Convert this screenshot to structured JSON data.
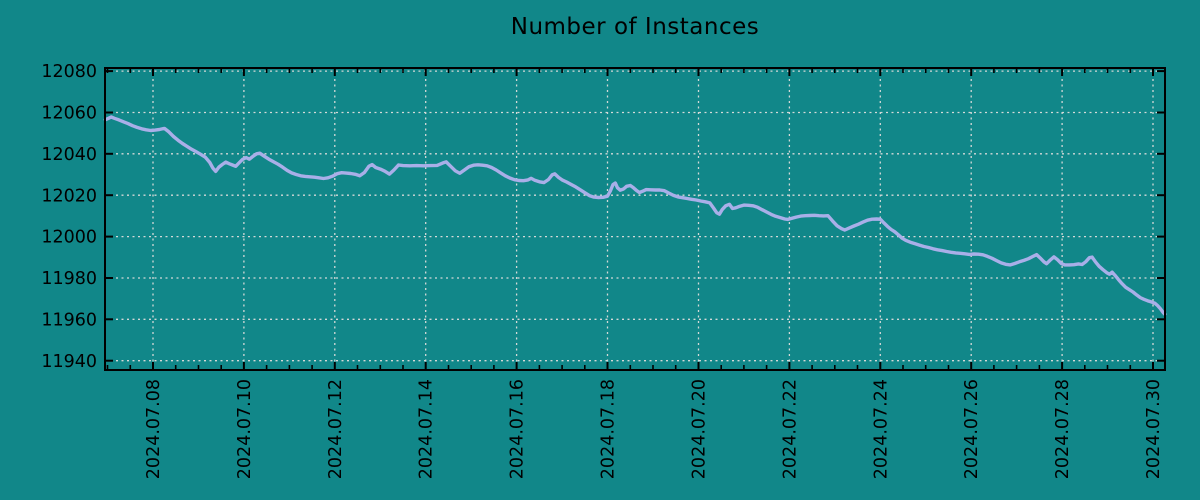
{
  "colors": {
    "background": "#118789",
    "line": "#a9afe8",
    "grid": "#d4d9d8",
    "frame": "#000000",
    "text": "#000000"
  },
  "chart_data": {
    "type": "line",
    "title": "Number of Instances",
    "xlabel": "",
    "ylabel": "",
    "legend": null,
    "grid": "dashed",
    "x_unit": "day of 2024.07 (fractional)",
    "xlim": [
      6.944,
      30.264
    ],
    "ylim": [
      11935.5,
      12081.5
    ],
    "x_ticks": [
      {
        "v": 8,
        "label": "2024.07.08"
      },
      {
        "v": 10,
        "label": "2024.07.10"
      },
      {
        "v": 12,
        "label": "2024.07.12"
      },
      {
        "v": 14,
        "label": "2024.07.14"
      },
      {
        "v": 16,
        "label": "2024.07.16"
      },
      {
        "v": 18,
        "label": "2024.07.18"
      },
      {
        "v": 20,
        "label": "2024.07.20"
      },
      {
        "v": 22,
        "label": "2024.07.22"
      },
      {
        "v": 24,
        "label": "2024.07.24"
      },
      {
        "v": 26,
        "label": "2024.07.26"
      },
      {
        "v": 28,
        "label": "2024.07.28"
      },
      {
        "v": 30,
        "label": "2024.07.30"
      }
    ],
    "x_minor_step": 0.5,
    "y_ticks": [
      {
        "v": 11940,
        "label": "11940"
      },
      {
        "v": 11960,
        "label": "11960"
      },
      {
        "v": 11980,
        "label": "11980"
      },
      {
        "v": 12000,
        "label": "12000"
      },
      {
        "v": 12020,
        "label": "12020"
      },
      {
        "v": 12040,
        "label": "12040"
      },
      {
        "v": 12060,
        "label": "12060"
      },
      {
        "v": 12080,
        "label": "12080"
      }
    ],
    "series": [
      {
        "name": "instances",
        "points": [
          [
            6.95,
            12056.5
          ],
          [
            7.02,
            12057.2
          ],
          [
            7.08,
            12057.8
          ],
          [
            7.15,
            12057.2
          ],
          [
            7.25,
            12056.4
          ],
          [
            7.35,
            12055.5
          ],
          [
            7.45,
            12054.6
          ],
          [
            7.55,
            12053.6
          ],
          [
            7.65,
            12052.8
          ],
          [
            7.75,
            12052.1
          ],
          [
            7.85,
            12051.6
          ],
          [
            7.95,
            12051.3
          ],
          [
            8.05,
            12051.5
          ],
          [
            8.15,
            12051.8
          ],
          [
            8.25,
            12052.3
          ],
          [
            8.35,
            12050.6
          ],
          [
            8.45,
            12048.4
          ],
          [
            8.55,
            12046.6
          ],
          [
            8.65,
            12045.0
          ],
          [
            8.75,
            12043.6
          ],
          [
            8.85,
            12042.2
          ],
          [
            8.95,
            12041.0
          ],
          [
            9.05,
            12039.8
          ],
          [
            9.15,
            12038.4
          ],
          [
            9.25,
            12035.8
          ],
          [
            9.32,
            12033.0
          ],
          [
            9.38,
            12031.5
          ],
          [
            9.45,
            12033.6
          ],
          [
            9.52,
            12034.8
          ],
          [
            9.6,
            12036.0
          ],
          [
            9.68,
            12035.2
          ],
          [
            9.75,
            12034.6
          ],
          [
            9.82,
            12034.0
          ],
          [
            9.9,
            12035.8
          ],
          [
            9.97,
            12037.3
          ],
          [
            10.05,
            12038.2
          ],
          [
            10.12,
            12037.4
          ],
          [
            10.2,
            12038.8
          ],
          [
            10.28,
            12040.0
          ],
          [
            10.35,
            12040.3
          ],
          [
            10.45,
            12038.8
          ],
          [
            10.55,
            12037.4
          ],
          [
            10.65,
            12036.2
          ],
          [
            10.75,
            12035.0
          ],
          [
            10.85,
            12033.6
          ],
          [
            10.95,
            12032.0
          ],
          [
            11.05,
            12030.8
          ],
          [
            11.15,
            12030.0
          ],
          [
            11.25,
            12029.4
          ],
          [
            11.35,
            12029.1
          ],
          [
            11.45,
            12028.9
          ],
          [
            11.55,
            12028.7
          ],
          [
            11.65,
            12028.4
          ],
          [
            11.75,
            12028.1
          ],
          [
            11.85,
            12028.4
          ],
          [
            11.95,
            12029.2
          ],
          [
            12.05,
            12030.4
          ],
          [
            12.15,
            12030.9
          ],
          [
            12.25,
            12030.7
          ],
          [
            12.35,
            12030.5
          ],
          [
            12.45,
            12030.1
          ],
          [
            12.55,
            12029.4
          ],
          [
            12.65,
            12031.0
          ],
          [
            12.75,
            12034.0
          ],
          [
            12.82,
            12034.8
          ],
          [
            12.9,
            12033.4
          ],
          [
            13.0,
            12032.6
          ],
          [
            13.1,
            12031.6
          ],
          [
            13.2,
            12030.2
          ],
          [
            13.3,
            12032.2
          ],
          [
            13.4,
            12034.6
          ],
          [
            13.5,
            12034.3
          ],
          [
            13.65,
            12034.2
          ],
          [
            13.8,
            12034.3
          ],
          [
            13.95,
            12034.2
          ],
          [
            14.1,
            12034.3
          ],
          [
            14.25,
            12034.4
          ],
          [
            14.38,
            12035.6
          ],
          [
            14.45,
            12036.1
          ],
          [
            14.55,
            12034.0
          ],
          [
            14.65,
            12031.8
          ],
          [
            14.75,
            12030.6
          ],
          [
            14.85,
            12032.2
          ],
          [
            14.95,
            12033.8
          ],
          [
            15.05,
            12034.5
          ],
          [
            15.15,
            12034.7
          ],
          [
            15.25,
            12034.5
          ],
          [
            15.35,
            12034.2
          ],
          [
            15.45,
            12033.4
          ],
          [
            15.55,
            12032.2
          ],
          [
            15.65,
            12030.8
          ],
          [
            15.75,
            12029.4
          ],
          [
            15.85,
            12028.3
          ],
          [
            15.95,
            12027.5
          ],
          [
            16.05,
            12027.1
          ],
          [
            16.15,
            12027.0
          ],
          [
            16.25,
            12027.4
          ],
          [
            16.32,
            12028.2
          ],
          [
            16.4,
            12027.2
          ],
          [
            16.5,
            12026.5
          ],
          [
            16.6,
            12026.1
          ],
          [
            16.7,
            12027.6
          ],
          [
            16.78,
            12029.8
          ],
          [
            16.84,
            12030.3
          ],
          [
            16.92,
            12028.6
          ],
          [
            17.0,
            12027.4
          ],
          [
            17.1,
            12026.4
          ],
          [
            17.2,
            12025.2
          ],
          [
            17.3,
            12024.0
          ],
          [
            17.4,
            12022.6
          ],
          [
            17.5,
            12021.2
          ],
          [
            17.6,
            12019.8
          ],
          [
            17.7,
            12019.1
          ],
          [
            17.8,
            12018.9
          ],
          [
            17.9,
            12019.0
          ],
          [
            18.0,
            12019.5
          ],
          [
            18.06,
            12022.0
          ],
          [
            18.12,
            12025.2
          ],
          [
            18.17,
            12025.9
          ],
          [
            18.22,
            12023.6
          ],
          [
            18.28,
            12022.4
          ],
          [
            18.35,
            12023.0
          ],
          [
            18.42,
            12024.3
          ],
          [
            18.5,
            12024.7
          ],
          [
            18.57,
            12023.6
          ],
          [
            18.63,
            12022.4
          ],
          [
            18.7,
            12021.3
          ],
          [
            18.78,
            12022.0
          ],
          [
            18.85,
            12022.7
          ],
          [
            18.95,
            12022.6
          ],
          [
            19.05,
            12022.5
          ],
          [
            19.15,
            12022.5
          ],
          [
            19.25,
            12022.2
          ],
          [
            19.35,
            12021.0
          ],
          [
            19.45,
            12019.9
          ],
          [
            19.55,
            12019.2
          ],
          [
            19.65,
            12018.8
          ],
          [
            19.75,
            12018.4
          ],
          [
            19.85,
            12018.0
          ],
          [
            19.95,
            12017.7
          ],
          [
            20.05,
            12017.2
          ],
          [
            20.15,
            12016.8
          ],
          [
            20.25,
            12016.3
          ],
          [
            20.33,
            12013.8
          ],
          [
            20.4,
            12011.6
          ],
          [
            20.46,
            12010.8
          ],
          [
            20.52,
            12013.0
          ],
          [
            20.6,
            12014.9
          ],
          [
            20.68,
            12015.6
          ],
          [
            20.75,
            12013.6
          ],
          [
            20.82,
            12013.9
          ],
          [
            20.9,
            12014.6
          ],
          [
            21.0,
            12015.2
          ],
          [
            21.1,
            12015.1
          ],
          [
            21.2,
            12014.9
          ],
          [
            21.3,
            12014.2
          ],
          [
            21.4,
            12013.0
          ],
          [
            21.5,
            12011.9
          ],
          [
            21.6,
            12010.7
          ],
          [
            21.7,
            12009.8
          ],
          [
            21.8,
            12009.2
          ],
          [
            21.9,
            12008.5
          ],
          [
            21.97,
            12008.3
          ],
          [
            22.05,
            12008.8
          ],
          [
            22.15,
            12009.4
          ],
          [
            22.25,
            12009.9
          ],
          [
            22.35,
            12010.1
          ],
          [
            22.45,
            12010.2
          ],
          [
            22.55,
            12010.3
          ],
          [
            22.65,
            12010.1
          ],
          [
            22.75,
            12010.0
          ],
          [
            22.85,
            12010.1
          ],
          [
            22.95,
            12007.6
          ],
          [
            23.05,
            12005.2
          ],
          [
            23.15,
            12003.8
          ],
          [
            23.22,
            12003.2
          ],
          [
            23.32,
            12004.2
          ],
          [
            23.42,
            12005.1
          ],
          [
            23.52,
            12006.0
          ],
          [
            23.62,
            12007.0
          ],
          [
            23.72,
            12007.9
          ],
          [
            23.82,
            12008.4
          ],
          [
            23.92,
            12008.5
          ],
          [
            24.0,
            12008.4
          ],
          [
            24.08,
            12006.6
          ],
          [
            24.16,
            12004.9
          ],
          [
            24.24,
            12003.4
          ],
          [
            24.32,
            12002.3
          ],
          [
            24.4,
            12000.8
          ],
          [
            24.48,
            11999.2
          ],
          [
            24.56,
            11998.2
          ],
          [
            24.66,
            11997.3
          ],
          [
            24.76,
            11996.6
          ],
          [
            24.86,
            11995.9
          ],
          [
            24.96,
            11995.2
          ],
          [
            25.06,
            11994.7
          ],
          [
            25.16,
            11994.1
          ],
          [
            25.26,
            11993.6
          ],
          [
            25.36,
            11993.2
          ],
          [
            25.46,
            11992.8
          ],
          [
            25.56,
            11992.4
          ],
          [
            25.66,
            11992.1
          ],
          [
            25.76,
            11991.9
          ],
          [
            25.86,
            11991.7
          ],
          [
            25.96,
            11991.4
          ],
          [
            26.06,
            11991.6
          ],
          [
            26.16,
            11991.5
          ],
          [
            26.26,
            11991.2
          ],
          [
            26.36,
            11990.4
          ],
          [
            26.46,
            11989.5
          ],
          [
            26.56,
            11988.4
          ],
          [
            26.66,
            11987.3
          ],
          [
            26.76,
            11986.6
          ],
          [
            26.86,
            11986.3
          ],
          [
            26.96,
            11987.0
          ],
          [
            27.06,
            11987.8
          ],
          [
            27.16,
            11988.5
          ],
          [
            27.26,
            11989.3
          ],
          [
            27.36,
            11990.4
          ],
          [
            27.44,
            11991.3
          ],
          [
            27.52,
            11989.6
          ],
          [
            27.6,
            11987.8
          ],
          [
            27.66,
            11986.9
          ],
          [
            27.74,
            11988.7
          ],
          [
            27.82,
            11990.2
          ],
          [
            27.9,
            11988.8
          ],
          [
            27.98,
            11987.0
          ],
          [
            28.06,
            11986.3
          ],
          [
            28.16,
            11986.3
          ],
          [
            28.26,
            11986.4
          ],
          [
            28.36,
            11986.8
          ],
          [
            28.44,
            11986.5
          ],
          [
            28.52,
            11987.8
          ],
          [
            28.6,
            11989.8
          ],
          [
            28.66,
            11990.1
          ],
          [
            28.74,
            11987.6
          ],
          [
            28.82,
            11985.5
          ],
          [
            28.9,
            11984.0
          ],
          [
            28.98,
            11982.6
          ],
          [
            29.04,
            11981.8
          ],
          [
            29.1,
            11982.8
          ],
          [
            29.16,
            11981.4
          ],
          [
            29.24,
            11979.2
          ],
          [
            29.32,
            11977.2
          ],
          [
            29.4,
            11975.5
          ],
          [
            29.48,
            11974.3
          ],
          [
            29.56,
            11973.2
          ],
          [
            29.64,
            11971.8
          ],
          [
            29.72,
            11970.5
          ],
          [
            29.8,
            11969.7
          ],
          [
            29.88,
            11969.0
          ],
          [
            29.96,
            11968.4
          ],
          [
            30.04,
            11967.8
          ],
          [
            30.1,
            11966.7
          ],
          [
            30.16,
            11965.2
          ],
          [
            30.22,
            11963.4
          ],
          [
            30.26,
            11962.5
          ]
        ]
      }
    ]
  }
}
